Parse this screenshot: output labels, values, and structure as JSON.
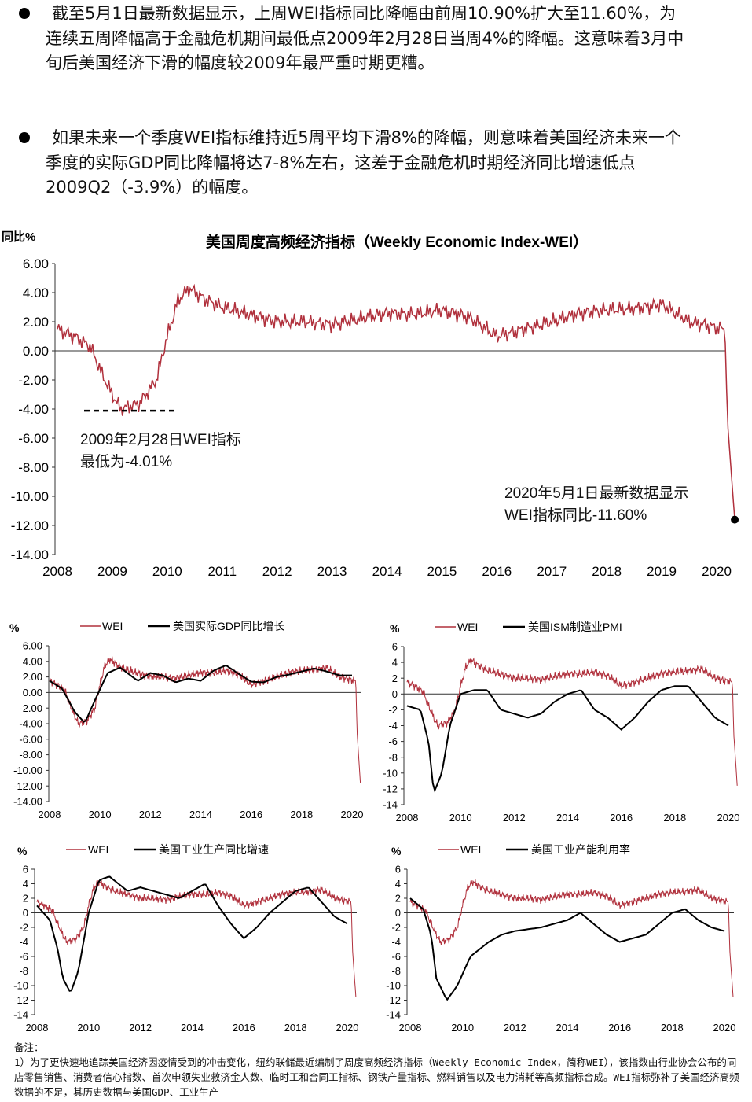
{
  "paragraphs": [
    "截至5月1日最新数据显示，上周WEI指标同比降幅由前周10.90%扩大至11.60%，为连续五周降幅高于金融危机期间最低点2009年2月28日当周4%的降幅。这意味着3月中旬后美国经济下滑的幅度较2009年最严重时期更糟。",
    "如果未来一个季度WEI指标维持近5周平均下滑8%的降幅，则意味着美国经济未来一个季度的实际GDP同比降幅将达7-8%左右，这差于金融危机时期经济同比增速低点2009Q2（-3.9%）的幅度。"
  ],
  "annotations": {
    "low_line1": "2009年2月28日WEI指标",
    "low_line2": "最低为-4.01%",
    "latest_line1": "2020年5月1日最新数据显示",
    "latest_line2": "WEI指标同比-11.60%"
  },
  "notes": {
    "heading": "备注：",
    "text": "1）为了更快速地追踪美国经济因疫情受到的冲击变化，纽约联储最近编制了周度高频经济指标（Weekly Economic Index，简称WEI），该指数由行业协会公布的同店零售销售、消费者信心指数、首次申领失业救济金人数、临时工和合同工指标、钢铁产量指标、燃料销售以及电力消耗等高频指标合成。WEI指标弥补了美国经济高频数据的不足，其历史数据与美国GDP、工业生产"
  },
  "colors": {
    "wei": "#b0303c",
    "other": "#000000"
  },
  "chart_data": [
    {
      "type": "line",
      "title": "美国周度高频经济指标（Weekly Economic Index-WEI）",
      "ylabel": "同比%",
      "ylim": [
        -14,
        6
      ],
      "yticks": [
        "6.00",
        "4.00",
        "2.00",
        "0.00",
        "-2.00",
        "-4.00",
        "-6.00",
        "-8.00",
        "-10.00",
        "-12.00",
        "-14.00"
      ],
      "xticks": [
        "2008",
        "2009",
        "2010",
        "2011",
        "2012",
        "2013",
        "2014",
        "2015",
        "2016",
        "2017",
        "2018",
        "2019",
        "2020"
      ],
      "series": [
        {
          "name": "WEI",
          "x": [
            2008,
            2008.3,
            2008.6,
            2008.8,
            2009.0,
            2009.15,
            2009.5,
            2009.8,
            2010.0,
            2010.2,
            2010.4,
            2010.7,
            2011,
            2011.5,
            2012,
            2012.5,
            2013,
            2013.5,
            2014,
            2014.5,
            2015,
            2015.5,
            2016,
            2016.5,
            2017,
            2017.5,
            2018,
            2018.5,
            2019,
            2019.5,
            2020,
            2020.15,
            2020.2,
            2020.33
          ],
          "y": [
            1.5,
            1.0,
            0.3,
            -1.5,
            -3.0,
            -4.01,
            -3.6,
            -2.0,
            1.0,
            3.5,
            4.3,
            3.5,
            3.0,
            2.5,
            2.0,
            2.0,
            1.8,
            2.2,
            2.6,
            2.5,
            2.8,
            2.3,
            1.0,
            1.5,
            2.0,
            2.6,
            2.8,
            2.9,
            3.2,
            2.0,
            1.6,
            1.5,
            -5,
            -11.6
          ]
        }
      ]
    },
    {
      "type": "line",
      "ylabel": "%",
      "legend": [
        "WEI",
        "美国实际GDP同比增长"
      ],
      "ylim": [
        -14,
        6
      ],
      "yticks": [
        "6.00",
        "4.00",
        "2.00",
        "0.00",
        "-2.00",
        "-4.00",
        "-6.00",
        "-8.00",
        "-10.00",
        "-12.00",
        "-14.00"
      ],
      "xticks": [
        "2008",
        "2010",
        "2012",
        "2014",
        "2016",
        "2018",
        "2020"
      ],
      "series": [
        {
          "name": "美国实际GDP同比增长",
          "x": [
            2008,
            2008.5,
            2009,
            2009.4,
            2009.8,
            2010.3,
            2010.8,
            2011.5,
            2012,
            2012.5,
            2013,
            2013.5,
            2014,
            2014.5,
            2015,
            2015.5,
            2016,
            2016.5,
            2017,
            2017.5,
            2018,
            2018.5,
            2019,
            2019.5,
            2020
          ],
          "y": [
            1.5,
            0.5,
            -2.5,
            -3.9,
            -1,
            2.5,
            3.2,
            1.5,
            2.5,
            2.2,
            1.3,
            1.8,
            1.5,
            2.8,
            3.5,
            2.4,
            1.4,
            1.3,
            2.0,
            2.3,
            2.7,
            3.1,
            2.7,
            2.2,
            2.2
          ]
        }
      ]
    },
    {
      "type": "line",
      "ylabel": "%",
      "legend": [
        "WEI",
        "美国ISM制造业PMI"
      ],
      "ylim": [
        -14,
        6
      ],
      "yticks": [
        "6",
        "4",
        "2",
        "0",
        "-2",
        "-4",
        "-6",
        "-8",
        "-10",
        "-12",
        "-14"
      ],
      "xticks": [
        "2008",
        "2010",
        "2012",
        "2014",
        "2016",
        "2018",
        "2020"
      ],
      "series": [
        {
          "name": "美国ISM制造业PMI",
          "x": [
            2008,
            2008.5,
            2008.8,
            2009,
            2009.3,
            2009.6,
            2010,
            2010.5,
            2011,
            2011.5,
            2012,
            2012.5,
            2013,
            2013.5,
            2014,
            2014.5,
            2015,
            2015.5,
            2016,
            2016.5,
            2017,
            2017.5,
            2018,
            2018.5,
            2019,
            2019.5,
            2020
          ],
          "y": [
            -1.5,
            -2,
            -6,
            -12.5,
            -10,
            -4,
            0,
            0.5,
            0.5,
            -2,
            -2.5,
            -3,
            -2.5,
            -1,
            0,
            0.5,
            -2,
            -3,
            -4.5,
            -3,
            -1,
            0.5,
            1,
            1,
            -1,
            -3,
            -4
          ]
        }
      ]
    },
    {
      "type": "line",
      "ylabel": "%",
      "legend": [
        "WEI",
        "美国工业生产同比增速"
      ],
      "ylim": [
        -14,
        6
      ],
      "yticks": [
        "6",
        "4",
        "2",
        "0",
        "-2",
        "-4",
        "-6",
        "-8",
        "-10",
        "-12",
        "-14"
      ],
      "xticks": [
        "2008",
        "2010",
        "2012",
        "2014",
        "2016",
        "2018",
        "2020"
      ],
      "series": [
        {
          "name": "美国工业生产同比增速",
          "x": [
            2008,
            2008.5,
            2008.8,
            2009,
            2009.3,
            2009.6,
            2010,
            2010.4,
            2010.8,
            2011.5,
            2012,
            2012.5,
            2013,
            2013.5,
            2014,
            2014.5,
            2015,
            2015.5,
            2016,
            2016.5,
            2017,
            2017.5,
            2018,
            2018.5,
            2019,
            2019.5,
            2020
          ],
          "y": [
            1,
            -1,
            -5,
            -9,
            -11,
            -8,
            0,
            4.5,
            5,
            3,
            3.5,
            3,
            2.5,
            2,
            3,
            4,
            1,
            -1.5,
            -3.5,
            -2,
            0,
            1.5,
            3,
            3.5,
            1.5,
            -0.5,
            -1.5
          ]
        }
      ]
    },
    {
      "type": "line",
      "ylabel": "%",
      "legend": [
        "WEI",
        "美国工业产能利用率"
      ],
      "ylim": [
        -14,
        6
      ],
      "yticks": [
        "6",
        "4",
        "2",
        "0",
        "-2",
        "-4",
        "-6",
        "-8",
        "-10",
        "-12",
        "-14"
      ],
      "xticks": [
        "2008",
        "2010",
        "2012",
        "2014",
        "2016",
        "2018",
        "2020"
      ],
      "series": [
        {
          "name": "美国工业产能利用率",
          "x": [
            2008,
            2008.5,
            2008.8,
            2009,
            2009.4,
            2009.8,
            2010.3,
            2011,
            2011.5,
            2012,
            2013,
            2014,
            2014.5,
            2015,
            2015.5,
            2016,
            2016.5,
            2017,
            2017.5,
            2018,
            2018.5,
            2019,
            2019.5,
            2020
          ],
          "y": [
            2,
            0.5,
            -3,
            -9,
            -12,
            -10,
            -6,
            -4,
            -3,
            -2.5,
            -2,
            -1,
            0,
            -1.5,
            -3,
            -4,
            -3.5,
            -3,
            -1.5,
            0,
            0.5,
            -1,
            -2,
            -2.5
          ]
        }
      ]
    }
  ]
}
